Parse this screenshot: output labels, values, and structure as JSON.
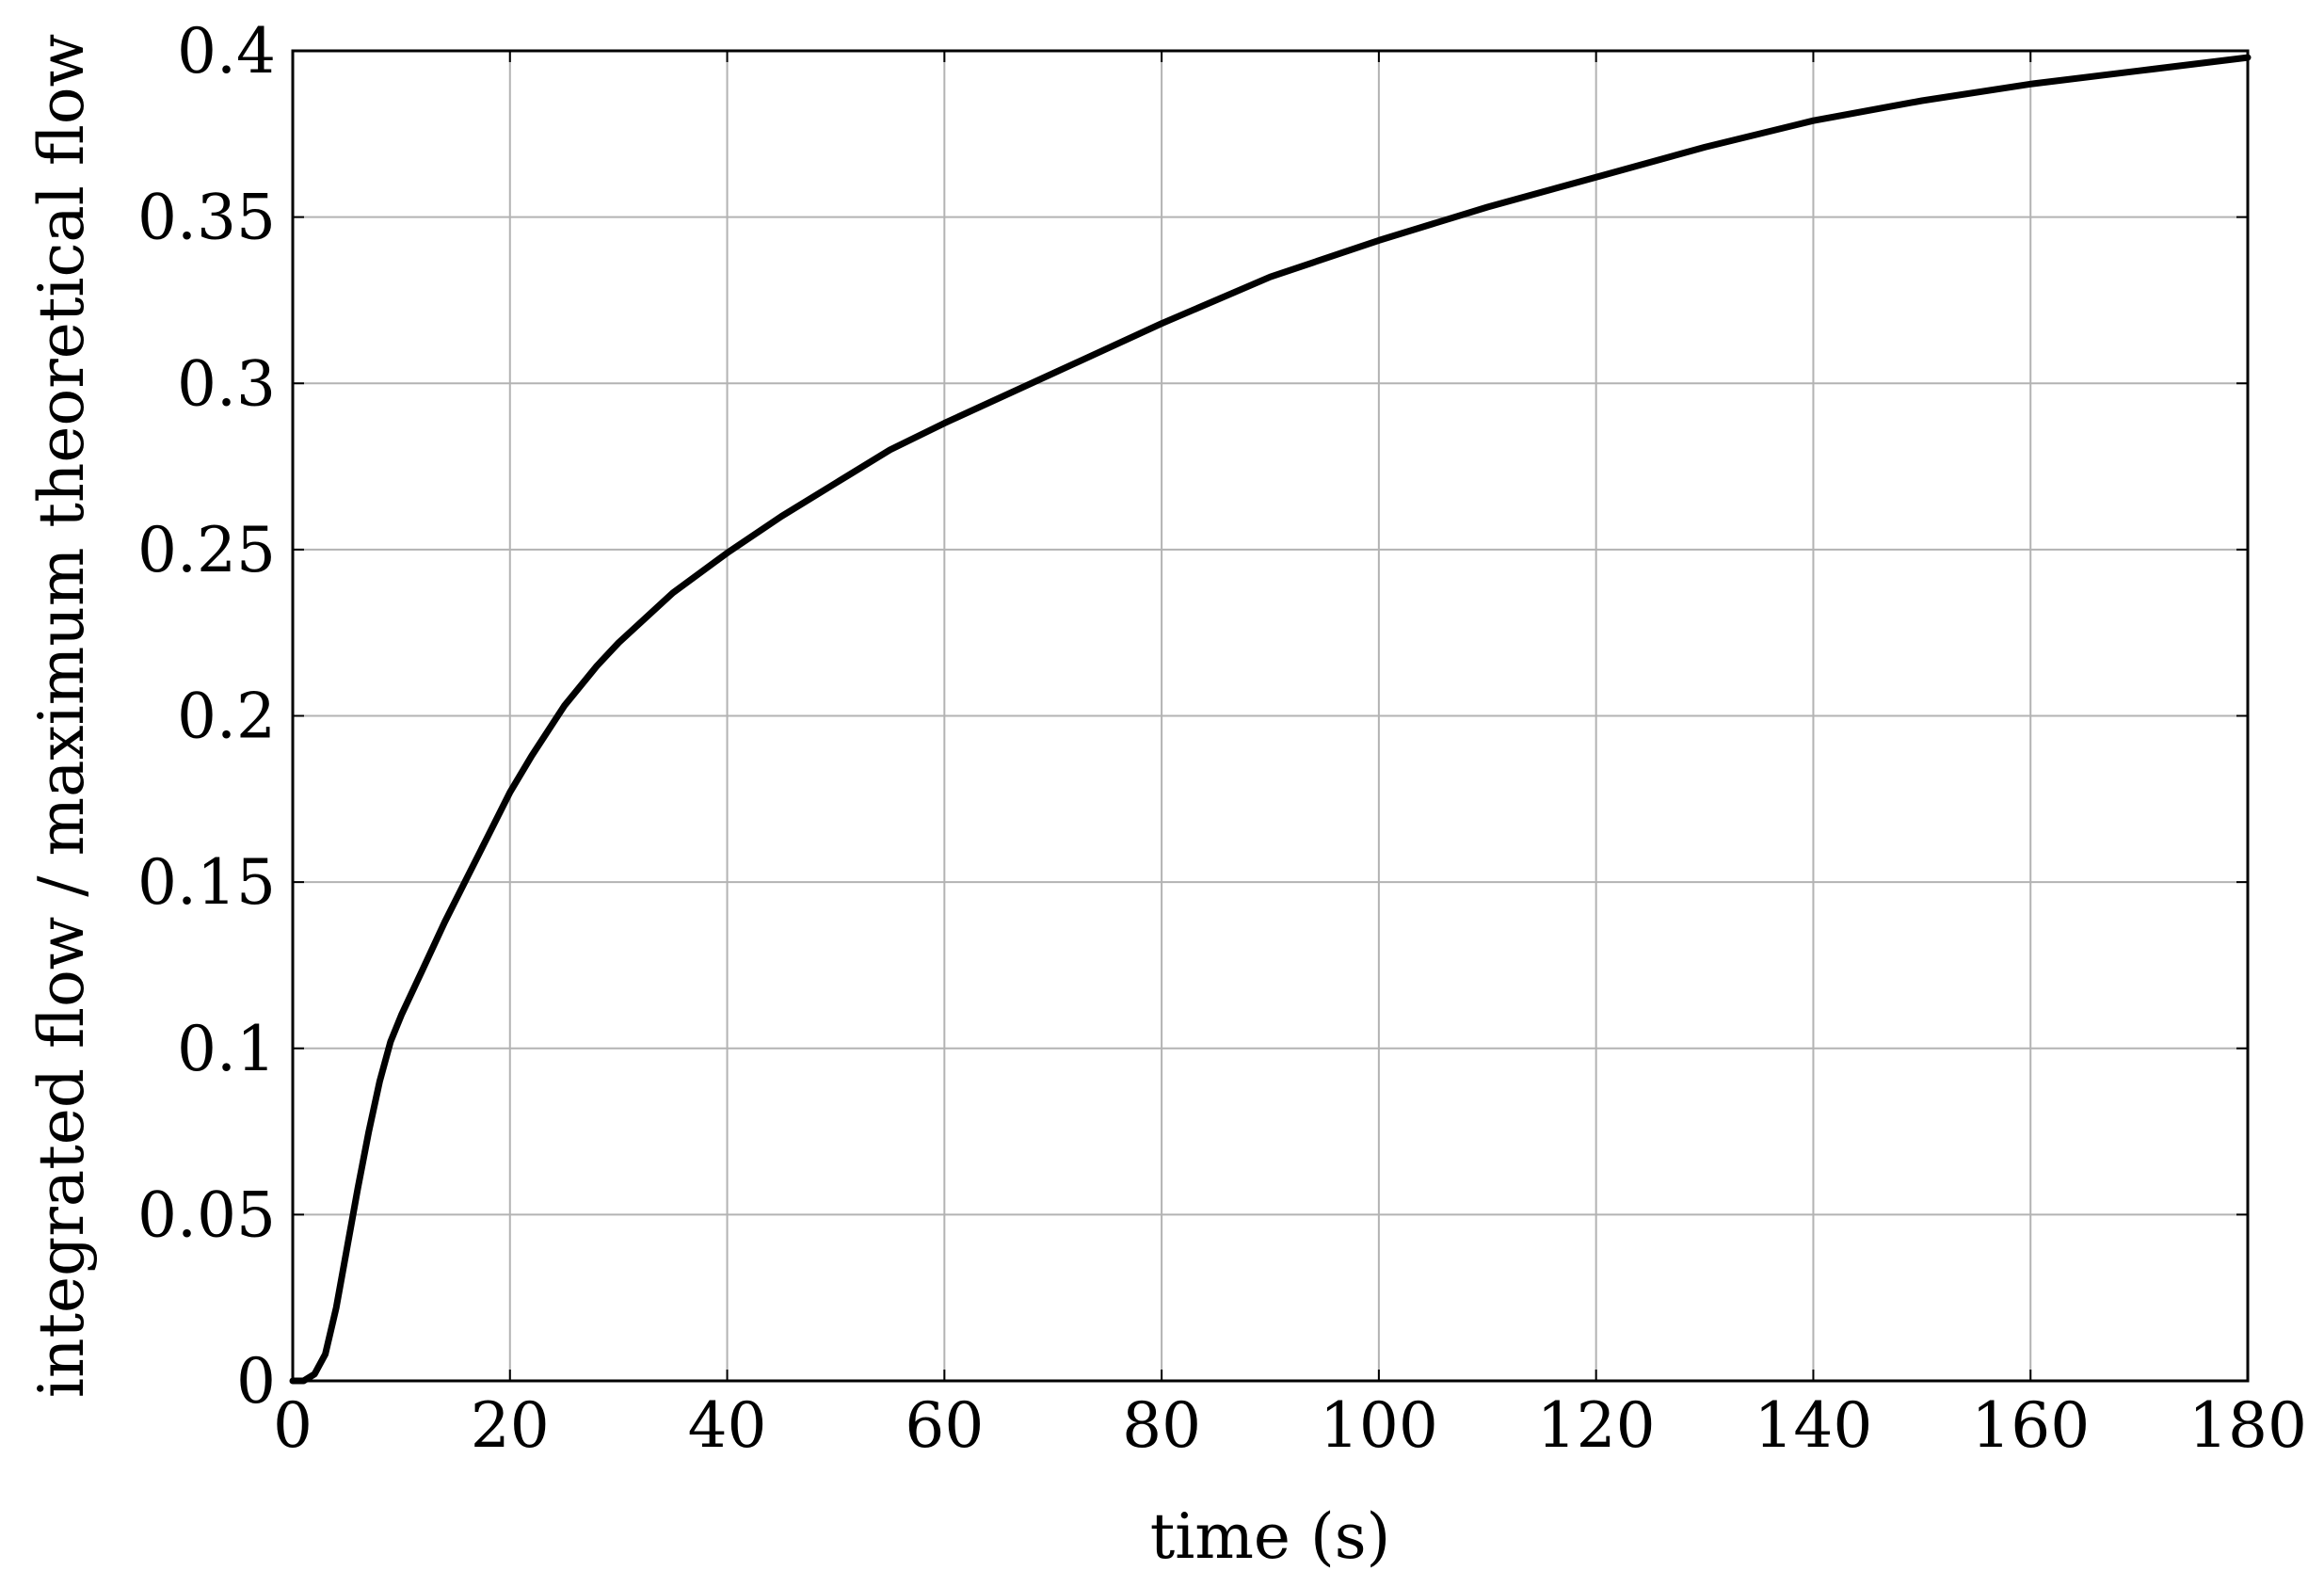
{
  "chart_data": {
    "type": "line",
    "title": "",
    "xlabel": "time (s)",
    "ylabel": "integrated flow / maximum theoretical flow",
    "xlim": [
      0,
      180
    ],
    "ylim": [
      0,
      0.4
    ],
    "grid": true,
    "legend": "none",
    "x_ticks": [
      0,
      20,
      40,
      60,
      80,
      100,
      120,
      140,
      160,
      180
    ],
    "x_tick_labels": [
      "0",
      "20",
      "40",
      "60",
      "80",
      "100",
      "120",
      "140",
      "160",
      "180"
    ],
    "y_ticks": [
      0,
      0.05,
      0.1,
      0.15,
      0.2,
      0.25,
      0.3,
      0.35,
      0.4
    ],
    "y_tick_labels": [
      "0",
      "0.05",
      "0.1",
      "0.15",
      "0.2",
      "0.25",
      "0.3",
      "0.35",
      "0.4"
    ],
    "colors": {
      "line": "#000000",
      "grid": "#b3b3b3",
      "frame": "#000000"
    },
    "series": [
      {
        "x": [
          0,
          1,
          2,
          3,
          4,
          5,
          6,
          7,
          8,
          9,
          10,
          12,
          14,
          16,
          18,
          20,
          22,
          25,
          28,
          30,
          35,
          40,
          45,
          50,
          55,
          60,
          70,
          80,
          90,
          100,
          110,
          120,
          130,
          140,
          150,
          160,
          170,
          180
        ],
        "values": [
          0,
          0,
          0.002,
          0.008,
          0.022,
          0.04,
          0.058,
          0.075,
          0.09,
          0.102,
          0.11,
          0.124,
          0.138,
          0.151,
          0.164,
          0.177,
          0.188,
          0.203,
          0.215,
          0.222,
          0.237,
          0.249,
          0.26,
          0.27,
          0.28,
          0.288,
          0.303,
          0.318,
          0.332,
          0.343,
          0.353,
          0.362,
          0.371,
          0.379,
          0.385,
          0.39,
          0.394,
          0.398
        ]
      }
    ]
  }
}
